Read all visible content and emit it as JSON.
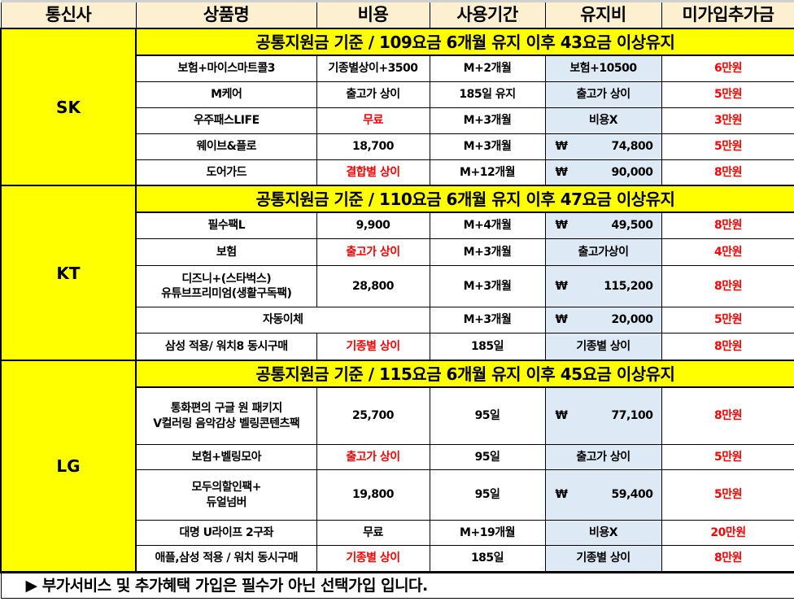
{
  "header": [
    "통신사",
    "상품명",
    "비용",
    "사용기간",
    "유지비",
    "미가입추가금"
  ],
  "groups": [
    {
      "carrier": "SK",
      "band": "공통지원금 기준 / 109요금 6개월 유지 이후 43요금 이상유지",
      "rows": [
        {
          "name": "보험+마이스마트콜3",
          "cost": "기종별상이+3500",
          "period": "M+2개월",
          "fee": "보험+10500",
          "extra": "6만원"
        },
        {
          "name": "M케어",
          "cost": "출고가 상이",
          "period": "185일 유지",
          "fee": "출고가 상이",
          "extra": "5만원"
        },
        {
          "name": "우주패스LIFE",
          "cost": "무료",
          "period": "M+3개월",
          "fee": "비용X",
          "extra": "3만원"
        },
        {
          "name": "웨이브&플로",
          "cost": "18,700",
          "period": "M+3개월",
          "fee": "74,800",
          "extra": "5만원"
        },
        {
          "name": "도어가드",
          "cost": "결합별 상이",
          "period": "M+12개월",
          "fee": "90,000",
          "extra": "8만원"
        }
      ]
    },
    {
      "carrier": "KT",
      "band": "공통지원금 기준 / 110요금 6개월 유지 이후 47요금 이상유지",
      "rows": [
        {
          "name": "필수팩L",
          "cost": "9,900",
          "period": "M+4개월",
          "fee": "49,500",
          "extra": "8만원"
        },
        {
          "name": "보험",
          "cost": "출고가 상이",
          "period": "M+3개월",
          "fee": "출고가상이",
          "extra": "4만원"
        },
        {
          "name": "디즈니+(스타벅스)\n유튜브프리미엄(생활구독팩)",
          "cost": "28,800",
          "period": "M+3개월",
          "fee": "115,200",
          "extra": "8만원"
        },
        {
          "name": "자동이체",
          "period": "M+3개월",
          "fee": "20,000",
          "extra": "5만원"
        },
        {
          "name": "삼성 적용/ 워치8 동시구매",
          "cost": "기종별 상이",
          "period": "185일",
          "fee": "기종별 상이",
          "extra": "8만원"
        }
      ]
    },
    {
      "carrier": "LG",
      "band": "공통지원금 기준 / 115요금 6개월 유지 이후 45요금 이상유지",
      "rows": [
        {
          "name": "통화편의 구글 원 패키지\nV컬러링 음악감상 벨링콘텐츠팩",
          "cost": "25,700",
          "period": "95일",
          "fee": "77,100",
          "extra": "8만원"
        },
        {
          "name": "보험+벨링모아",
          "cost": "출고가 상이",
          "period": "95일",
          "fee": "출고가 상이",
          "extra": "5만원"
        },
        {
          "name": "모두의할인팩+\n듀얼넘버",
          "cost": "19,800",
          "period": "95일",
          "fee": "59,400",
          "extra": "5만원"
        },
        {
          "name": "대명 U라이프 2구좌",
          "cost": "무료",
          "period": "M+19개월",
          "fee": "비용X",
          "extra": "20만원"
        },
        {
          "name": "애플,삼성 적용 / 워치 동시구매",
          "cost": "기종별 상이",
          "period": "185일",
          "fee": "기종별 상이",
          "extra": "8만원"
        }
      ]
    }
  ],
  "won_symbol": "₩",
  "footer": "▶ 부가서비스 및 추가혜택 가입은 필수가 아닌 선택가입 입니다.",
  "colors": {
    "header_bg": "#fdf0d0",
    "band_bg": "#ffff00",
    "fee_bg": "#dde9f5",
    "highlight": "#ff0000"
  }
}
